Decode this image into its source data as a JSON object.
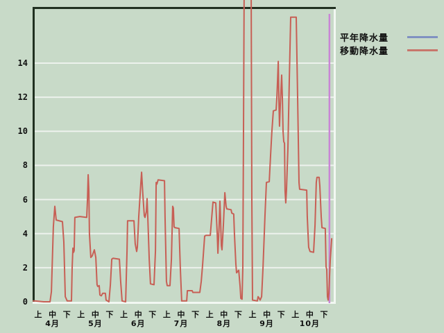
{
  "colors": {
    "background": "#c8dac8",
    "gridline": "#edf2ed",
    "border_dark": "#203020",
    "border_light": "#f2f7f2",
    "text": "#101010"
  },
  "legend": {
    "items": [
      {
        "label": "平年降水量",
        "color": "#8091c1"
      },
      {
        "label": "移動降水量",
        "color": "#c8766c"
      }
    ]
  },
  "chart_data": {
    "type": "line",
    "title": "",
    "xlabel": "",
    "ylabel": "",
    "y_axis": {
      "ticks": [
        0,
        2,
        4,
        6,
        8,
        10,
        12,
        14
      ],
      "visible_max": 17.3,
      "gridlines": true
    },
    "x_axis": {
      "period_labels": [
        "上",
        "中",
        "下"
      ],
      "months": [
        "4月",
        "5月",
        "6月",
        "7月",
        "8月",
        "9月",
        "10月"
      ],
      "note": "x unit = day of season starting April, 21 ten-day periods"
    },
    "legend_position": "top-right",
    "marker_line": {
      "name": "date-marker",
      "color": "#c985d5",
      "day": 210
    },
    "series": [
      {
        "name": "平年降水量",
        "color": "#8091c1",
        "points": []
      },
      {
        "name": "移動降水量",
        "color": "#c75f55",
        "points": [
          [
            0.5,
            0.05
          ],
          [
            1.5,
            0.05
          ],
          [
            7.9,
            0
          ],
          [
            12.3,
            0
          ],
          [
            13.3,
            0.6
          ],
          [
            14.7,
            4.4
          ],
          [
            15.7,
            5.6
          ],
          [
            16.2,
            5.2
          ],
          [
            16.7,
            4.8
          ],
          [
            21.1,
            4.7
          ],
          [
            22.1,
            3.5
          ],
          [
            23.1,
            0.3
          ],
          [
            24.5,
            0.05
          ],
          [
            27.5,
            0.05
          ],
          [
            28,
            2
          ],
          [
            28.5,
            3.15
          ],
          [
            29,
            2.9
          ],
          [
            29.4,
            3
          ],
          [
            29.9,
            4.95
          ],
          [
            33.4,
            5
          ],
          [
            38.3,
            4.95
          ],
          [
            38.8,
            6
          ],
          [
            39.3,
            7.45
          ],
          [
            39.8,
            6.5
          ],
          [
            40.2,
            4
          ],
          [
            41.2,
            2.6
          ],
          [
            42.2,
            2.7
          ],
          [
            43.7,
            3.05
          ],
          [
            44.7,
            2.6
          ],
          [
            45.6,
            1
          ],
          [
            46.1,
            0.9
          ],
          [
            47.1,
            0.95
          ],
          [
            47.6,
            0.4
          ],
          [
            48.6,
            0.35
          ],
          [
            49.6,
            0.5
          ],
          [
            51.5,
            0.5
          ],
          [
            52,
            0.1
          ],
          [
            54,
            0
          ],
          [
            55,
            1
          ],
          [
            56,
            2.5
          ],
          [
            56.9,
            2.55
          ],
          [
            61.4,
            2.5
          ],
          [
            62.3,
            1.2
          ],
          [
            63.3,
            0.05
          ],
          [
            65.8,
            0
          ],
          [
            66.8,
            3
          ],
          [
            67.2,
            4.75
          ],
          [
            71.7,
            4.75
          ],
          [
            72.6,
            3.4
          ],
          [
            73.6,
            2.95
          ],
          [
            74.1,
            3.2
          ],
          [
            75.1,
            5
          ],
          [
            76.6,
            7
          ],
          [
            77.1,
            7.6
          ],
          [
            78,
            6.3
          ],
          [
            79,
            5.05
          ],
          [
            79.5,
            4.95
          ],
          [
            80.5,
            5.3
          ],
          [
            81,
            6.05
          ],
          [
            81.5,
            5
          ],
          [
            82.5,
            2.5
          ],
          [
            83.4,
            1.05
          ],
          [
            85.9,
            1
          ],
          [
            86.9,
            3
          ],
          [
            87.4,
            7
          ],
          [
            87.9,
            6.9
          ],
          [
            88.8,
            7.15
          ],
          [
            93.3,
            7.1
          ],
          [
            93.7,
            5
          ],
          [
            94.7,
            1.2
          ],
          [
            95.2,
            0.95
          ],
          [
            97.2,
            0.95
          ],
          [
            98.2,
            2.5
          ],
          [
            99.1,
            5.6
          ],
          [
            99.6,
            5.5
          ],
          [
            100.1,
            4.4
          ],
          [
            100.6,
            4.35
          ],
          [
            103.6,
            4.3
          ],
          [
            104.5,
            2
          ],
          [
            105.5,
            0.05
          ],
          [
            109,
            0.05
          ],
          [
            109.5,
            0.65
          ],
          [
            112.9,
            0.65
          ],
          [
            113.4,
            0.55
          ],
          [
            118.3,
            0.55
          ],
          [
            119.3,
            1.2
          ],
          [
            120.3,
            2.2
          ],
          [
            121.7,
            3.85
          ],
          [
            122.7,
            3.9
          ],
          [
            125.7,
            3.9
          ],
          [
            126.6,
            4.8
          ],
          [
            127.6,
            5.85
          ],
          [
            129.6,
            5.8
          ],
          [
            130.6,
            4
          ],
          [
            131.1,
            2.85
          ],
          [
            132,
            4.5
          ],
          [
            132.5,
            5.9
          ],
          [
            133,
            4.8
          ],
          [
            133.5,
            3.3
          ],
          [
            134,
            3.05
          ],
          [
            135,
            4.5
          ],
          [
            136,
            6.4
          ],
          [
            136.9,
            5.6
          ],
          [
            137.4,
            5.45
          ],
          [
            140.4,
            5.4
          ],
          [
            140.9,
            5.2
          ],
          [
            142.3,
            5.15
          ],
          [
            142.8,
            4
          ],
          [
            143.8,
            2.2
          ],
          [
            144.3,
            1.7
          ],
          [
            145.3,
            1.8
          ],
          [
            145.8,
            1.85
          ],
          [
            146.8,
            0.9
          ],
          [
            147.3,
            0.2
          ],
          [
            148.2,
            0.15
          ],
          [
            148.7,
            2
          ],
          [
            149.2,
            10
          ],
          [
            149.7,
            19
          ],
          [
            154.6,
            19
          ],
          [
            155.1,
            6
          ],
          [
            155.6,
            0.1
          ],
          [
            159,
            0.05
          ],
          [
            159.5,
            0.3
          ],
          [
            160,
            0.25
          ],
          [
            161,
            0.1
          ],
          [
            162,
            0.3
          ],
          [
            163,
            2
          ],
          [
            164.4,
            5
          ],
          [
            165.4,
            7
          ],
          [
            167.4,
            7.05
          ],
          [
            168.3,
            8.5
          ],
          [
            169.3,
            10
          ],
          [
            170.3,
            11.2
          ],
          [
            172.3,
            11.25
          ],
          [
            172.8,
            12
          ],
          [
            173.3,
            13
          ],
          [
            173.8,
            14.1
          ],
          [
            174.2,
            12
          ],
          [
            174.7,
            10.3
          ],
          [
            175.2,
            11.5
          ],
          [
            176.2,
            13.3
          ],
          [
            176.7,
            12
          ],
          [
            177.2,
            10
          ],
          [
            177.7,
            9.4
          ],
          [
            178.2,
            9.3
          ],
          [
            178.6,
            6.5
          ],
          [
            179.1,
            5.8
          ],
          [
            179.6,
            6.5
          ],
          [
            180.6,
            9
          ],
          [
            181.6,
            13
          ],
          [
            182.6,
            16.7
          ],
          [
            186.5,
            16.7
          ],
          [
            187.5,
            12
          ],
          [
            188.5,
            7
          ],
          [
            188.9,
            6.6
          ],
          [
            193.9,
            6.55
          ],
          [
            194.3,
            5
          ],
          [
            195.3,
            3.2
          ],
          [
            196.3,
            2.95
          ],
          [
            198.8,
            2.9
          ],
          [
            199.8,
            4.5
          ],
          [
            200.7,
            7
          ],
          [
            201.2,
            7.3
          ],
          [
            202.7,
            7.3
          ],
          [
            203.2,
            6.8
          ],
          [
            204.2,
            5
          ],
          [
            204.7,
            4.35
          ],
          [
            207.1,
            4.3
          ],
          [
            207.6,
            2.05
          ],
          [
            208.1,
            1.9
          ],
          [
            208.6,
            0.3
          ],
          [
            209.1,
            0.1
          ],
          [
            209.6,
            0.5
          ],
          [
            210.6,
            2.5
          ],
          [
            211.6,
            3.7
          ]
        ]
      }
    ]
  }
}
